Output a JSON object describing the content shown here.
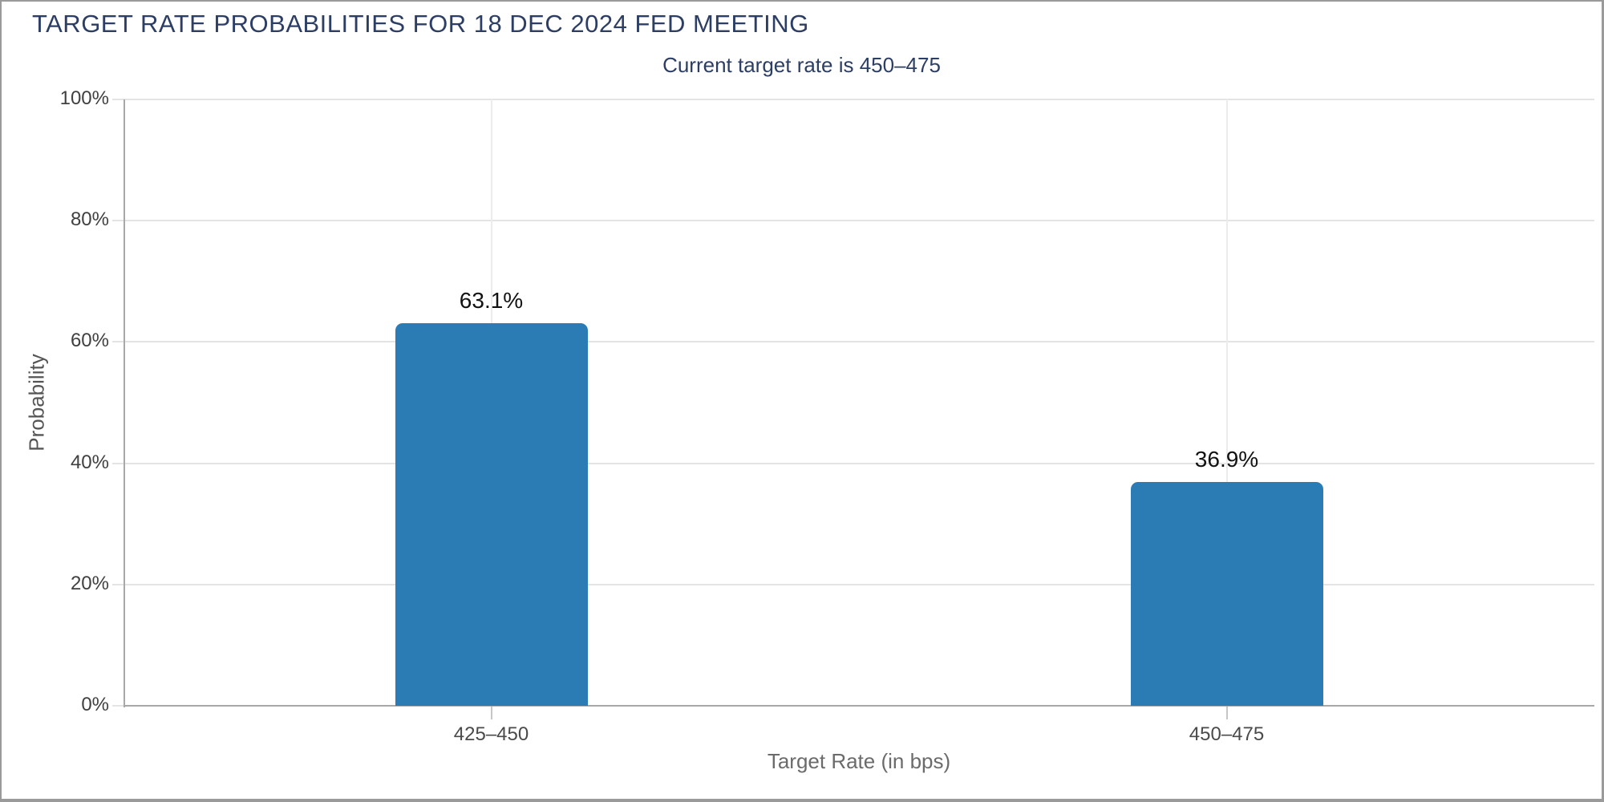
{
  "chart": {
    "title": "TARGET RATE PROBABILITIES FOR 18 DEC 2024 FED MEETING",
    "subtitle": "Current target rate is 450–475"
  },
  "chart_data": {
    "type": "bar",
    "title": "TARGET RATE PROBABILITIES FOR 18 DEC 2024 FED MEETING",
    "subtitle": "Current target rate is 450–475",
    "categories": [
      "425–450",
      "450–475"
    ],
    "values": [
      63.1,
      36.9
    ],
    "value_labels": [
      "63.1%",
      "36.9%"
    ],
    "xlabel": "Target Rate (in bps)",
    "ylabel": "Probability",
    "ylim": [
      0,
      100
    ],
    "yticks": [
      0,
      20,
      40,
      60,
      80,
      100
    ],
    "ytick_labels": [
      "0%",
      "20%",
      "40%",
      "60%",
      "80%",
      "100%"
    ],
    "grid": true,
    "legend": "none",
    "bar_color": "#2b7cb5",
    "title_color": "#2c3e64",
    "border_color": "#9a9a9a"
  }
}
